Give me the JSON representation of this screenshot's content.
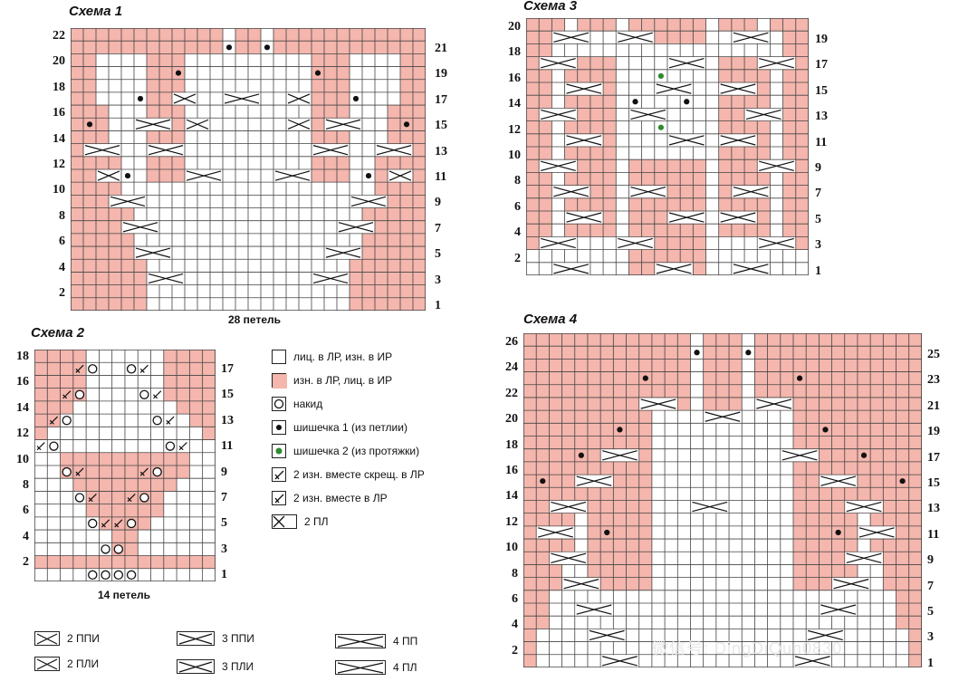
{
  "colors": {
    "pink": "#f4b6ad",
    "dot_green": "#2e8b2e",
    "line": "#333333",
    "grid_line": "#444444"
  },
  "schemes": [
    {
      "key": "s1",
      "title": "Схема 1",
      "caption": "28 петель",
      "left_nums": [
        "22",
        "20",
        "18",
        "16",
        "14",
        "12",
        "10",
        "8",
        "6",
        "4",
        "2"
      ],
      "right_nums": [
        "21",
        "19",
        "17",
        "15",
        "13",
        "11",
        "9",
        "7",
        "5",
        "3",
        "1"
      ]
    },
    {
      "key": "s2",
      "title": "Схема 2",
      "caption": "14 петель",
      "left_nums": [
        "18",
        "16",
        "14",
        "12",
        "10",
        "8",
        "6",
        "4",
        "2"
      ],
      "right_nums": [
        "17",
        "15",
        "13",
        "11",
        "9",
        "7",
        "5",
        "3",
        "1"
      ]
    },
    {
      "key": "s3",
      "title": "Схема 3",
      "caption": "",
      "left_nums": [
        "20",
        "18",
        "16",
        "14",
        "12",
        "10",
        "8",
        "6",
        "4",
        "2"
      ],
      "right_nums": [
        "19",
        "17",
        "15",
        "13",
        "11",
        "9",
        "7",
        "5",
        "3",
        "1"
      ]
    },
    {
      "key": "s4",
      "title": "Схема 4",
      "caption": "",
      "left_nums": [
        "26",
        "24",
        "22",
        "20",
        "18",
        "16",
        "14",
        "12",
        "10",
        "8",
        "6",
        "4",
        "2"
      ],
      "right_nums": [
        "25",
        "23",
        "21",
        "19",
        "17",
        "15",
        "13",
        "11",
        "9",
        "7",
        "5",
        "3",
        "1"
      ]
    }
  ],
  "legend": [
    {
      "icon": "knit-square-icon",
      "label": "лиц. в ЛР, изн. в ИР"
    },
    {
      "icon": "purl-pink-square-icon",
      "label": "изн. в ЛР, лиц. в ИР"
    },
    {
      "icon": "yarn-over-icon",
      "label": "накид"
    },
    {
      "icon": "bobble-1-icon",
      "label": "шишечка 1 (из петлии)"
    },
    {
      "icon": "bobble-2-icon",
      "label": "шишечка 2 (из протяжки)"
    },
    {
      "icon": "p2tog-tbl-icon",
      "label": "2 изн. вместе скрещ. в ЛР"
    },
    {
      "icon": "p2tog-icon",
      "label": "2 изн. вместе в ЛР"
    },
    {
      "icon": "cable-2-left-icon",
      "label": "2 ПЛ"
    }
  ],
  "cables": [
    {
      "icon": "cable-2-right-purl-icon",
      "label": "2 ППИ"
    },
    {
      "icon": "cable-3-right-purl-icon",
      "label": "3 ППИ"
    },
    {
      "icon": "cable-4-right-icon",
      "label": "4 ПП"
    },
    {
      "icon": "cable-2-left-purl-icon",
      "label": "2 ПЛИ"
    },
    {
      "icon": "cable-3-left-purl-icon",
      "label": "3 ПЛИ"
    },
    {
      "icon": "cable-4-left-icon",
      "label": "4 ПЛ"
    }
  ],
  "watermark": "微信号: DingDiQun0830"
}
